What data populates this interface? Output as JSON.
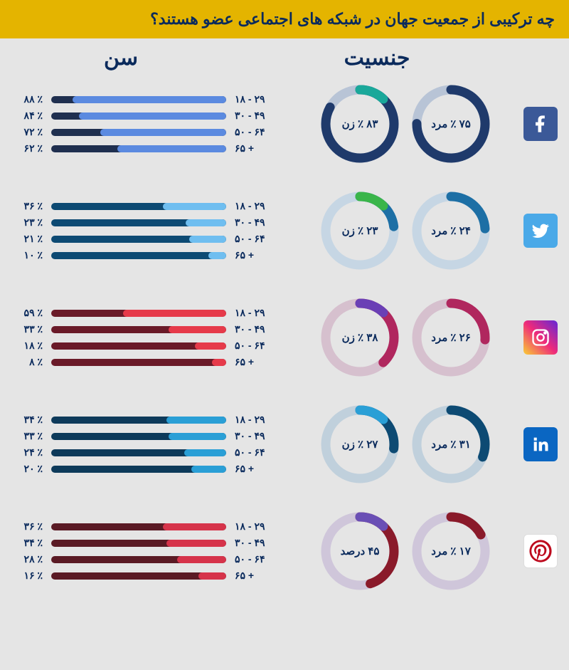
{
  "title": "چه ترکیبی از جمعیت جهان در شبکه های اجتماعی عضو هستند؟",
  "column_headers": {
    "gender": "جنسیت",
    "age": "سن"
  },
  "age_labels": [
    "۱۸ - ۲۹",
    "۳۰ - ۴۹",
    "۵۰ - ۶۴",
    "۶۵ +"
  ],
  "networks": [
    {
      "name": "facebook",
      "icon_bg": "#3b5998",
      "icon_fg": "#ffffff",
      "donut_track": "#b8c4d6",
      "male": {
        "pct": 75,
        "label": "۷۵ ٪ مرد",
        "color": "#1f3a6b"
      },
      "female": {
        "pct": 83,
        "label": "۸۳ ٪ زن",
        "color": "#1f3a6b",
        "accent": "#1aa89a"
      },
      "bar_track": "#1f2f4f",
      "bar_fill": "#5b8ae0",
      "ages": [
        {
          "pct": 88,
          "t": "۸۸ ٪"
        },
        {
          "pct": 84,
          "t": "۸۴ ٪"
        },
        {
          "pct": 72,
          "t": "۷۲ ٪"
        },
        {
          "pct": 62,
          "t": "۶۲ ٪"
        }
      ]
    },
    {
      "name": "twitter",
      "icon_bg": "#4aa9e8",
      "icon_fg": "#ffffff",
      "donut_track": "#c6d6e4",
      "male": {
        "pct": 24,
        "label": "۲۴ ٪ مرد",
        "color": "#1d6fa5"
      },
      "female": {
        "pct": 23,
        "label": "۲۳ ٪ زن",
        "color": "#1d6fa5",
        "accent": "#3ab54a"
      },
      "bar_track": "#0d4a73",
      "bar_fill": "#6fbef0",
      "ages": [
        {
          "pct": 36,
          "t": "۳۶ ٪"
        },
        {
          "pct": 23,
          "t": "۲۳ ٪"
        },
        {
          "pct": 21,
          "t": "۲۱ ٪"
        },
        {
          "pct": 10,
          "t": "۱۰ ٪"
        }
      ]
    },
    {
      "name": "instagram",
      "icon_bg": "linear-gradient(45deg,#f9ce34,#ee2a7b,#6228d7)",
      "icon_fg": "#ffffff",
      "donut_track": "#d6c0ce",
      "male": {
        "pct": 26,
        "label": "۲۶ ٪ مرد",
        "color": "#b0275e"
      },
      "female": {
        "pct": 38,
        "label": "۳۸ ٪ زن",
        "color": "#b0275e",
        "accent": "#6a3fb5"
      },
      "bar_track": "#6a1a28",
      "bar_fill": "#e63a4a",
      "ages": [
        {
          "pct": 59,
          "t": "۵۹ ٪"
        },
        {
          "pct": 33,
          "t": "۳۳ ٪"
        },
        {
          "pct": 18,
          "t": "۱۸ ٪"
        },
        {
          "pct": 8,
          "t": "۸ ٪"
        }
      ]
    },
    {
      "name": "linkedin",
      "icon_bg": "#0a66c2",
      "icon_fg": "#ffffff",
      "donut_track": "#c0d0dc",
      "male": {
        "pct": 31,
        "label": "۳۱ ٪ مرد",
        "color": "#0d4a73"
      },
      "female": {
        "pct": 27,
        "label": "۲۷ ٪ زن",
        "color": "#0d4a73",
        "accent": "#2a9fd6"
      },
      "bar_track": "#0d3a5a",
      "bar_fill": "#2a9fd6",
      "ages": [
        {
          "pct": 34,
          "t": "۳۴ ٪"
        },
        {
          "pct": 33,
          "t": "۳۳ ٪"
        },
        {
          "pct": 24,
          "t": "۲۴ ٪"
        },
        {
          "pct": 20,
          "t": "۲۰ ٪"
        }
      ]
    },
    {
      "name": "pinterest",
      "icon_bg": "#ffffff",
      "icon_fg": "#bd081c",
      "donut_track": "#cfc6da",
      "male": {
        "pct": 17,
        "label": "۱۷ ٪ مرد",
        "color": "#8a1a2a"
      },
      "female": {
        "pct": 45,
        "label": "۴۵ درصد",
        "color": "#8a1a2a",
        "accent": "#6a4fb5"
      },
      "bar_track": "#5a1a24",
      "bar_fill": "#d6334a",
      "ages": [
        {
          "pct": 36,
          "t": "۳۶ ٪"
        },
        {
          "pct": 34,
          "t": "۳۴ ٪"
        },
        {
          "pct": 28,
          "t": "۲۸ ٪"
        },
        {
          "pct": 16,
          "t": "۱۶ ٪"
        }
      ]
    }
  ]
}
